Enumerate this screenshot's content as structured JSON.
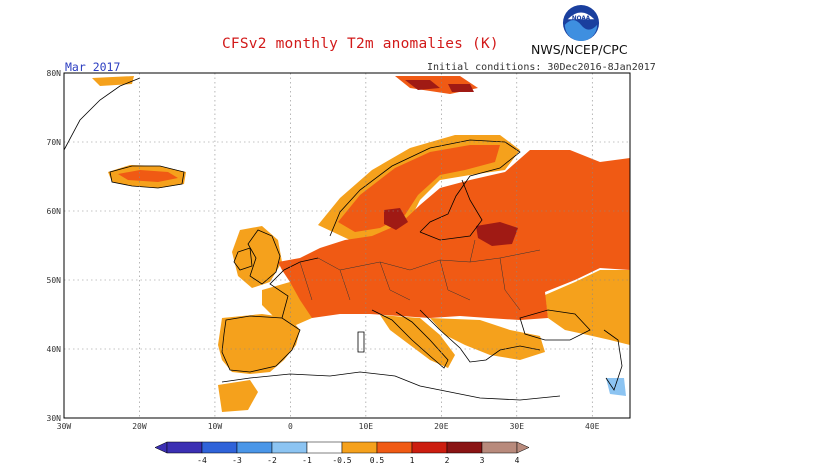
{
  "header": {
    "title": "CFSv2 monthly T2m anomalies (K)",
    "agency": "NWS/NCEP/CPC",
    "logo_text": "NOAA",
    "month": "Mar 2017",
    "initial_conditions": "Initial conditions: 30Dec2016-8Jan2017"
  },
  "axes": {
    "lat_labels": [
      "80N",
      "70N",
      "60N",
      "50N",
      "40N",
      "30N"
    ],
    "lon_labels": [
      "30W",
      "20W",
      "10W",
      "0",
      "10E",
      "20E",
      "30E",
      "40E"
    ],
    "lat_values": [
      80,
      70,
      60,
      50,
      40,
      30
    ],
    "lon_values": [
      -30,
      -20,
      -10,
      0,
      10,
      20,
      30,
      40
    ],
    "lon_range": [
      -30,
      45
    ],
    "lat_range": [
      30,
      80
    ]
  },
  "colorbar": {
    "labels": [
      "-4",
      "-3",
      "-2",
      "-1",
      "-0.5",
      "0.5",
      "1",
      "2",
      "3",
      "4"
    ],
    "colors": [
      "#3b2fb3",
      "#2f63d9",
      "#4a96e8",
      "#8cc4f2",
      "#ffffff",
      "#f5a11c",
      "#f05a14",
      "#cc1d0f",
      "#8a1414",
      "#b88a7c"
    ]
  },
  "colors": {
    "warm_light": "#f5a11c",
    "warm_mid": "#f05a14",
    "warm_strong": "#a01a14",
    "cool_light": "#8cc4f2",
    "coastline": "#000000",
    "title": "#d21a1a",
    "month": "#2a3cc0"
  }
}
